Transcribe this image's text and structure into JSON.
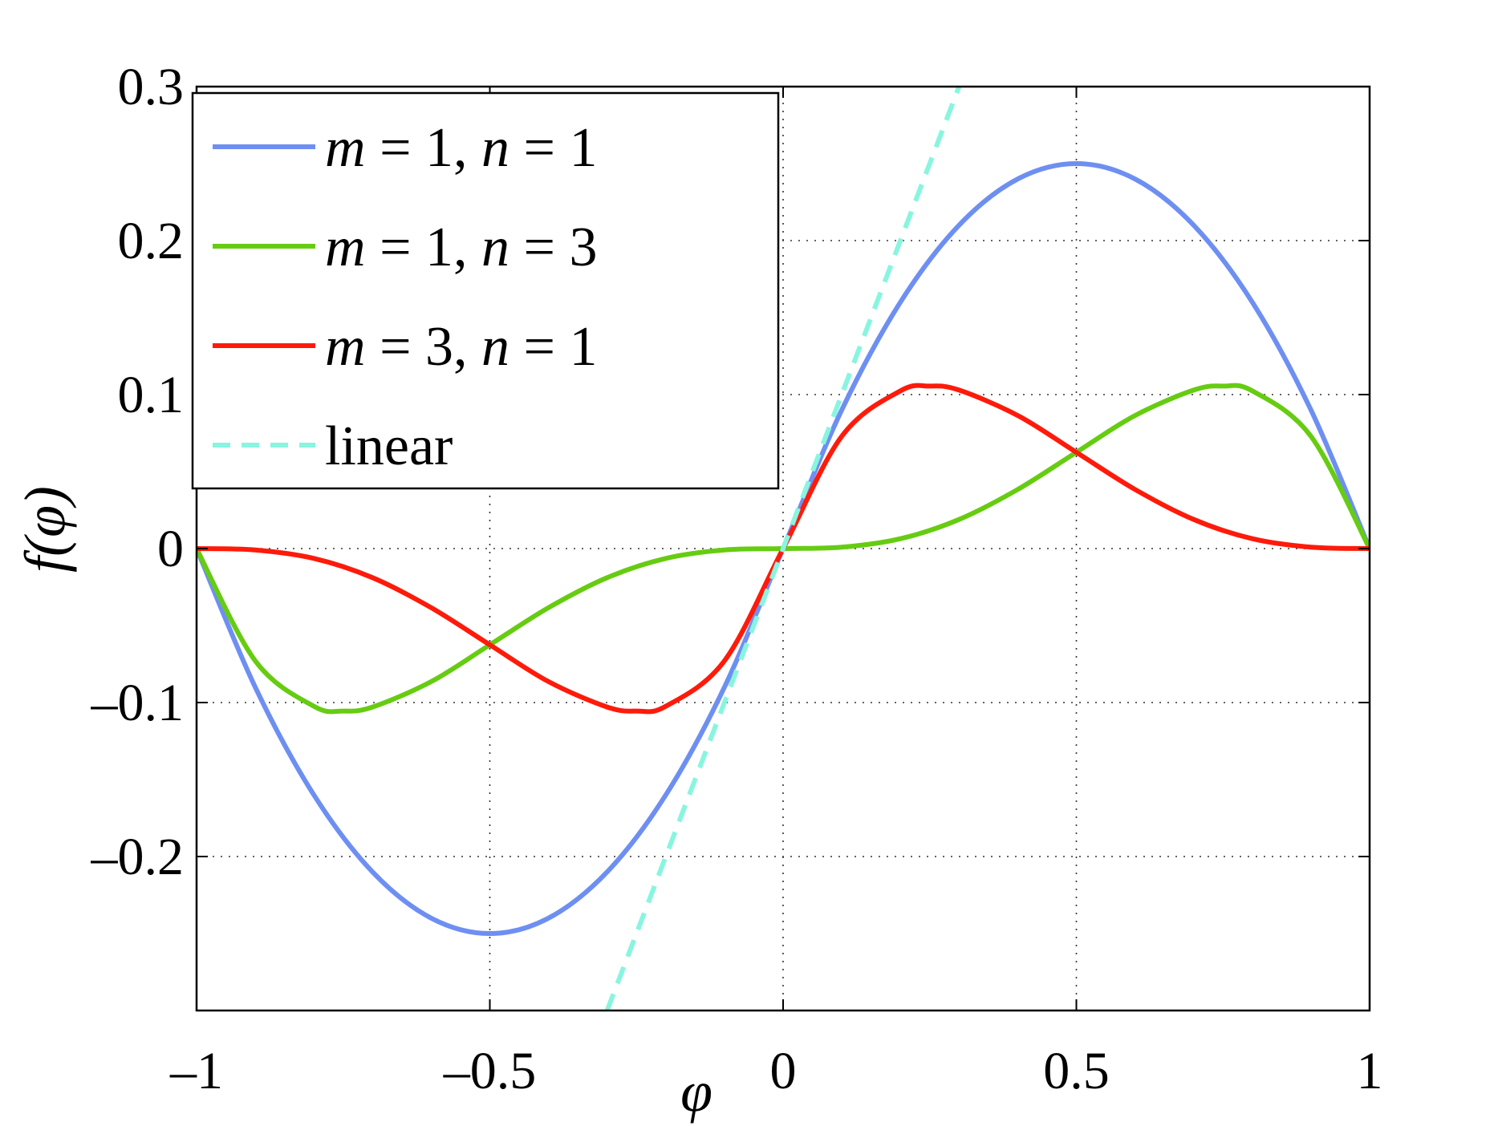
{
  "chart_data": {
    "type": "line",
    "title": "",
    "xlabel": "φ",
    "ylabel": "f(φ)",
    "xlim": [
      -1,
      1
    ],
    "ylim": [
      -0.3,
      0.3
    ],
    "xticks": [
      -1,
      -0.5,
      0,
      0.5,
      1
    ],
    "xtick_labels": [
      "–1",
      "–0.5",
      "0",
      "0.5",
      "1"
    ],
    "yticks": [
      -0.2,
      -0.1,
      0,
      0.1,
      0.2,
      0.3
    ],
    "ytick_labels": [
      "–0.2",
      "–0.1",
      "0",
      "0.1",
      "0.2",
      "0.3"
    ],
    "grid": true,
    "legend_position": "top-left",
    "series": [
      {
        "name": "m = 1, n = 1",
        "label_parts": [
          [
            "m",
            true
          ],
          [
            " = 1, ",
            false
          ],
          [
            "n",
            true
          ],
          [
            " = 1",
            false
          ]
        ],
        "color": "#6e8ff2",
        "style": "solid",
        "x": [
          -1,
          -0.9,
          -0.8,
          -0.7,
          -0.6,
          -0.5,
          -0.4,
          -0.3,
          -0.2,
          -0.1,
          0,
          0.1,
          0.2,
          0.3,
          0.4,
          0.5,
          0.6,
          0.7,
          0.8,
          0.9,
          1
        ],
        "y": [
          0,
          -0.09,
          -0.16,
          -0.21,
          -0.24,
          -0.25,
          -0.24,
          -0.21,
          -0.16,
          -0.09,
          0,
          0.09,
          0.16,
          0.21,
          0.24,
          0.25,
          0.24,
          0.21,
          0.16,
          0.09,
          0
        ]
      },
      {
        "name": "m = 1, n = 3",
        "label_parts": [
          [
            "m",
            true
          ],
          [
            " = 1, ",
            false
          ],
          [
            "n",
            true
          ],
          [
            " = 3",
            false
          ]
        ],
        "color": "#66cc11",
        "style": "solid",
        "x": [
          -1,
          -0.9,
          -0.8,
          -0.75,
          -0.7,
          -0.6,
          -0.5,
          -0.4,
          -0.3,
          -0.2,
          -0.1,
          0,
          0.1,
          0.2,
          0.3,
          0.4,
          0.5,
          0.6,
          0.7,
          0.75,
          0.8,
          0.9,
          1
        ],
        "y": [
          0,
          -0.0729,
          -0.1024,
          -0.1055,
          -0.1029,
          -0.0864,
          -0.0625,
          -0.0384,
          -0.0189,
          -0.0064,
          -0.0009,
          0,
          0.0009,
          0.0064,
          0.0189,
          0.0384,
          0.0625,
          0.0864,
          0.1029,
          0.1055,
          0.1024,
          0.0729,
          0
        ]
      },
      {
        "name": "m = 3, n = 1",
        "label_parts": [
          [
            "m",
            true
          ],
          [
            " = 3, ",
            false
          ],
          [
            "n",
            true
          ],
          [
            " = 1",
            false
          ]
        ],
        "color": "#ff1a0a",
        "style": "solid",
        "x": [
          -1,
          -0.9,
          -0.8,
          -0.7,
          -0.6,
          -0.5,
          -0.4,
          -0.3,
          -0.25,
          -0.2,
          -0.1,
          0,
          0.1,
          0.2,
          0.25,
          0.3,
          0.4,
          0.5,
          0.6,
          0.7,
          0.8,
          0.9,
          1
        ],
        "y": [
          0,
          -0.0009,
          -0.0064,
          -0.0189,
          -0.0384,
          -0.0625,
          -0.0864,
          -0.1029,
          -0.1055,
          -0.1024,
          -0.0729,
          0,
          0.0729,
          0.1024,
          0.1055,
          0.1029,
          0.0864,
          0.0625,
          0.0384,
          0.0189,
          0.0064,
          0.0009,
          0
        ]
      },
      {
        "name": "linear",
        "label_parts": [
          [
            "linear",
            false
          ]
        ],
        "color": "#88f5df",
        "style": "dashed",
        "x": [
          -0.3,
          0.3
        ],
        "y": [
          -0.3,
          0.3
        ]
      }
    ]
  }
}
